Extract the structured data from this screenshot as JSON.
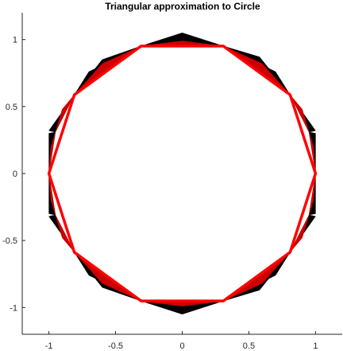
{
  "chart_data": {
    "type": "line",
    "title": "Triangular approximation to Circle",
    "xlabel": "",
    "ylabel": "",
    "xlim": [
      -1.2,
      1.2
    ],
    "ylim": [
      -1.2,
      1.2
    ],
    "xticks": [
      -1,
      -0.5,
      0,
      0.5,
      1
    ],
    "xtick_labels": [
      "-1",
      "-0.5",
      "0",
      "0.5",
      "1"
    ],
    "yticks": [
      -1,
      -0.5,
      0,
      0.5,
      1
    ],
    "ytick_labels": [
      "-1",
      "-0.5",
      "0",
      "0.5",
      "1"
    ],
    "grid": false,
    "box": false,
    "series": [
      {
        "kind": "filled-triangles",
        "color": "#000000",
        "triangles": [
          [
            [
              0.9511,
              0.309
            ],
            [
              1.0,
              0.0
            ],
            [
              1.0,
              0.3
            ]
          ],
          [
            [
              1.0,
              0.0
            ],
            [
              0.9511,
              -0.309
            ],
            [
              1.0,
              -0.3
            ]
          ],
          [
            [
              0.809,
              0.5878
            ],
            [
              0.9511,
              0.309
            ],
            [
              1.0,
              0.32
            ]
          ],
          [
            [
              0.9511,
              -0.309
            ],
            [
              0.809,
              -0.5878
            ],
            [
              1.0,
              -0.32
            ]
          ],
          [
            [
              0.309,
              0.9511
            ],
            [
              0.809,
              0.5878
            ],
            [
              0.58,
              0.87
            ]
          ],
          [
            [
              0.809,
              0.5878
            ],
            [
              0.309,
              0.9511
            ],
            [
              0.7,
              0.76
            ]
          ],
          [
            [
              0.809,
              -0.5878
            ],
            [
              0.309,
              -0.9511
            ],
            [
              0.58,
              -0.87
            ]
          ],
          [
            [
              0.309,
              -0.9511
            ],
            [
              0.809,
              -0.5878
            ],
            [
              0.7,
              -0.76
            ]
          ],
          [
            [
              -0.309,
              0.9511
            ],
            [
              0.309,
              0.9511
            ],
            [
              0.0,
              1.05
            ]
          ],
          [
            [
              -0.309,
              -0.9511
            ],
            [
              0.309,
              -0.9511
            ],
            [
              0.0,
              -1.05
            ]
          ],
          [
            [
              -0.809,
              0.5878
            ],
            [
              -0.309,
              0.9511
            ],
            [
              -0.6,
              0.85
            ]
          ],
          [
            [
              -0.309,
              0.9511
            ],
            [
              -0.809,
              0.5878
            ],
            [
              -0.7,
              0.76
            ]
          ],
          [
            [
              -0.309,
              -0.9511
            ],
            [
              -0.809,
              -0.5878
            ],
            [
              -0.6,
              -0.85
            ]
          ],
          [
            [
              -0.809,
              -0.5878
            ],
            [
              -0.309,
              -0.9511
            ],
            [
              -0.7,
              -0.76
            ]
          ],
          [
            [
              -0.9511,
              0.309
            ],
            [
              -0.809,
              0.5878
            ],
            [
              -1.0,
              0.32
            ]
          ],
          [
            [
              -0.809,
              -0.5878
            ],
            [
              -0.9511,
              -0.309
            ],
            [
              -1.0,
              -0.32
            ]
          ],
          [
            [
              -1.0,
              0.0
            ],
            [
              -0.9511,
              0.309
            ],
            [
              -1.0,
              0.3
            ]
          ],
          [
            [
              -0.9511,
              -0.309
            ],
            [
              -1.0,
              0.0
            ],
            [
              -1.0,
              -0.3
            ]
          ]
        ]
      },
      {
        "kind": "filled-triangles",
        "color": "#cc0000",
        "triangles": [
          [
            [
              0.9511,
              0.309
            ],
            [
              1.0,
              0.0
            ],
            [
              0.985,
              0.2
            ]
          ],
          [
            [
              1.0,
              0.0
            ],
            [
              0.9511,
              -0.309
            ],
            [
              0.985,
              -0.2
            ]
          ],
          [
            [
              0.809,
              0.5878
            ],
            [
              0.9511,
              0.309
            ],
            [
              0.9,
              0.48
            ]
          ],
          [
            [
              0.9511,
              -0.309
            ],
            [
              0.809,
              -0.5878
            ],
            [
              0.9,
              -0.48
            ]
          ],
          [
            [
              0.309,
              0.9511
            ],
            [
              0.809,
              0.5878
            ],
            [
              0.6,
              0.82
            ]
          ],
          [
            [
              0.809,
              -0.5878
            ],
            [
              0.309,
              -0.9511
            ],
            [
              0.6,
              -0.82
            ]
          ],
          [
            [
              -0.309,
              0.9511
            ],
            [
              0.309,
              0.9511
            ],
            [
              0.0,
              0.99
            ]
          ],
          [
            [
              -0.309,
              -0.9511
            ],
            [
              0.309,
              -0.9511
            ],
            [
              0.0,
              -0.99
            ]
          ],
          [
            [
              -0.809,
              0.5878
            ],
            [
              -0.309,
              0.9511
            ],
            [
              -0.6,
              0.82
            ]
          ],
          [
            [
              -0.309,
              -0.9511
            ],
            [
              -0.809,
              -0.5878
            ],
            [
              -0.6,
              -0.82
            ]
          ],
          [
            [
              -0.9511,
              0.309
            ],
            [
              -0.809,
              0.5878
            ],
            [
              -0.9,
              0.48
            ]
          ],
          [
            [
              -0.809,
              -0.5878
            ],
            [
              -0.9511,
              -0.309
            ],
            [
              -0.9,
              -0.48
            ]
          ],
          [
            [
              -1.0,
              0.0
            ],
            [
              -0.9511,
              0.309
            ],
            [
              -0.985,
              0.2
            ]
          ],
          [
            [
              -0.9511,
              -0.309
            ],
            [
              -1.0,
              0.0
            ],
            [
              -0.985,
              -0.2
            ]
          ]
        ]
      },
      {
        "kind": "line",
        "color": "#ff0000",
        "closed": true,
        "x": [
          1.0,
          0.809,
          0.309,
          -0.309,
          -0.809,
          -1.0,
          -0.809,
          -0.309,
          0.309,
          0.809
        ],
        "y": [
          0.0,
          0.5878,
          0.9511,
          0.9511,
          0.5878,
          0.0,
          -0.5878,
          -0.9511,
          -0.9511,
          -0.5878
        ]
      }
    ]
  }
}
